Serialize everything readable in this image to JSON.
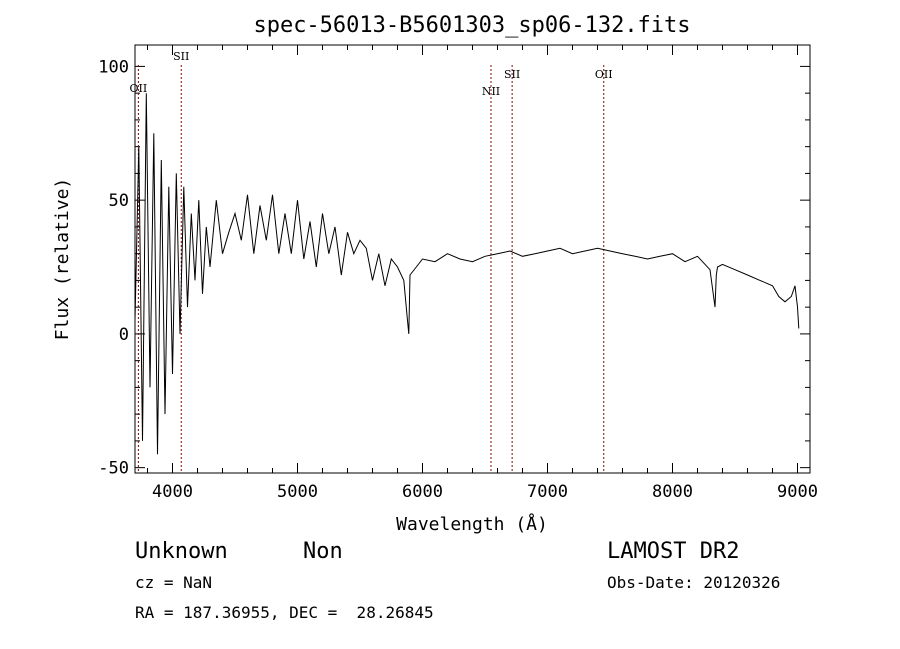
{
  "chart_data": {
    "type": "line",
    "title": "spec-56013-B5601303_sp06-132.fits",
    "xlabel": "Wavelength (Å)",
    "ylabel": "Flux (relative)",
    "xlim": [
      3700,
      9100
    ],
    "ylim": [
      -52,
      108
    ],
    "xticks": [
      4000,
      5000,
      6000,
      7000,
      8000,
      9000
    ],
    "yticks": [
      -50,
      0,
      50,
      100
    ],
    "grid": false,
    "series": [
      {
        "color": "#000000",
        "x": [
          3700,
          3730,
          3760,
          3790,
          3820,
          3850,
          3880,
          3910,
          3940,
          3970,
          4000,
          4030,
          4060,
          4090,
          4120,
          4150,
          4180,
          4210,
          4240,
          4270,
          4300,
          4350,
          4400,
          4450,
          4500,
          4550,
          4600,
          4650,
          4700,
          4750,
          4800,
          4850,
          4900,
          4950,
          5000,
          5050,
          5100,
          5150,
          5200,
          5250,
          5300,
          5350,
          5400,
          5450,
          5500,
          5550,
          5600,
          5650,
          5700,
          5750,
          5800,
          5850,
          5880,
          5890,
          5900,
          5950,
          6000,
          6100,
          6200,
          6300,
          6400,
          6500,
          6600,
          6700,
          6800,
          6900,
          7000,
          7100,
          7200,
          7300,
          7400,
          7500,
          7600,
          7700,
          7800,
          7900,
          8000,
          8100,
          8200,
          8300,
          8340,
          8350,
          8360,
          8400,
          8500,
          8600,
          8700,
          8800,
          8850,
          8900,
          8950,
          8980,
          9000,
          9010
        ],
        "y": [
          5,
          70,
          -40,
          90,
          -20,
          75,
          -45,
          65,
          -30,
          55,
          -15,
          60,
          0,
          55,
          10,
          45,
          20,
          50,
          15,
          40,
          25,
          50,
          30,
          38,
          45,
          35,
          52,
          30,
          48,
          35,
          52,
          30,
          45,
          30,
          50,
          28,
          42,
          25,
          45,
          30,
          40,
          22,
          38,
          30,
          35,
          32,
          20,
          30,
          18,
          28,
          25,
          20,
          5,
          0,
          22,
          25,
          28,
          27,
          30,
          28,
          27,
          29,
          30,
          31,
          29,
          30,
          31,
          32,
          30,
          31,
          32,
          31,
          30,
          29,
          28,
          29,
          30,
          27,
          29,
          24,
          10,
          22,
          25,
          26,
          24,
          22,
          20,
          18,
          14,
          12,
          14,
          18,
          10,
          2
        ]
      }
    ],
    "line_markers": [
      {
        "label": "OII",
        "x": 3727,
        "color": "#8b0000"
      },
      {
        "label": "SII",
        "x": 4070,
        "color": "#8b0000"
      },
      {
        "label": "NII",
        "x": 6548,
        "color": "#8b0000"
      },
      {
        "label": "SII",
        "x": 6717,
        "color": "#8b0000"
      },
      {
        "label": "OII",
        "x": 7450,
        "color": "#8b0000"
      }
    ]
  },
  "info": {
    "class": "Unknown",
    "subclass": "Non",
    "survey": "LAMOST DR2",
    "cz": "cz = NaN",
    "obs_date": "Obs-Date: 20120326",
    "coords": "RA = 187.36955, DEC =  28.26845"
  }
}
